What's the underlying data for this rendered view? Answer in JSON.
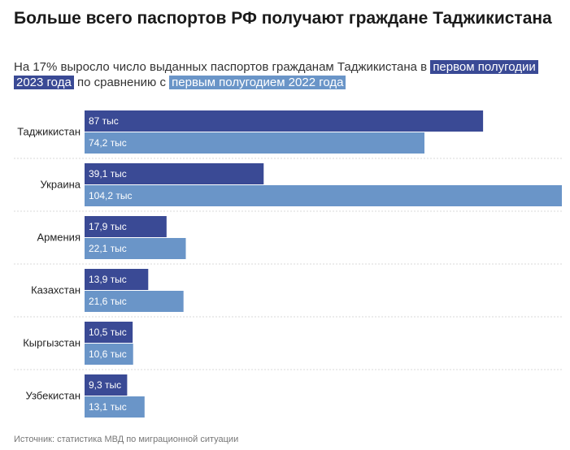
{
  "title": "Больше всего паспортов РФ получают граждане Таджикистана",
  "subtitle": {
    "prefix": "На 17% выросло число выданных паспортов гражданам Таджикистана в",
    "highlight_2023": "первом полугодии 2023 года",
    "middle": "по сравнению с",
    "highlight_2022": "первым полугодием 2022 года"
  },
  "source": "Источник: статистика МВД по миграционной ситуации",
  "colors": {
    "series_2023": "#3a4a95",
    "series_2022": "#6a95c8",
    "grid": "#d9d9d9"
  },
  "chart_data": {
    "type": "bar",
    "orientation": "horizontal",
    "categories": [
      "Таджикистан",
      "Украина",
      "Армения",
      "Казахстан",
      "Кыргызстан",
      "Узбекистан"
    ],
    "series": [
      {
        "values": [
          87,
          39.1,
          17.9,
          13.9,
          10.5,
          9.3
        ],
        "labels": [
          "87 тыс",
          "39,1 тыс",
          "17,9 тыс",
          "13,9 тыс",
          "10,5 тыс",
          "9,3 тыс"
        ]
      },
      {
        "values": [
          74.2,
          104.2,
          22.1,
          21.6,
          10.6,
          13.1
        ],
        "labels": [
          "74,2 тыс",
          "104,2 тыс",
          "22,1 тыс",
          "21,6 тыс",
          "10,6 тыс",
          "13,1 тыс"
        ]
      }
    ],
    "xlim": [
      0,
      104.2
    ],
    "grid": false,
    "legend": "none"
  }
}
